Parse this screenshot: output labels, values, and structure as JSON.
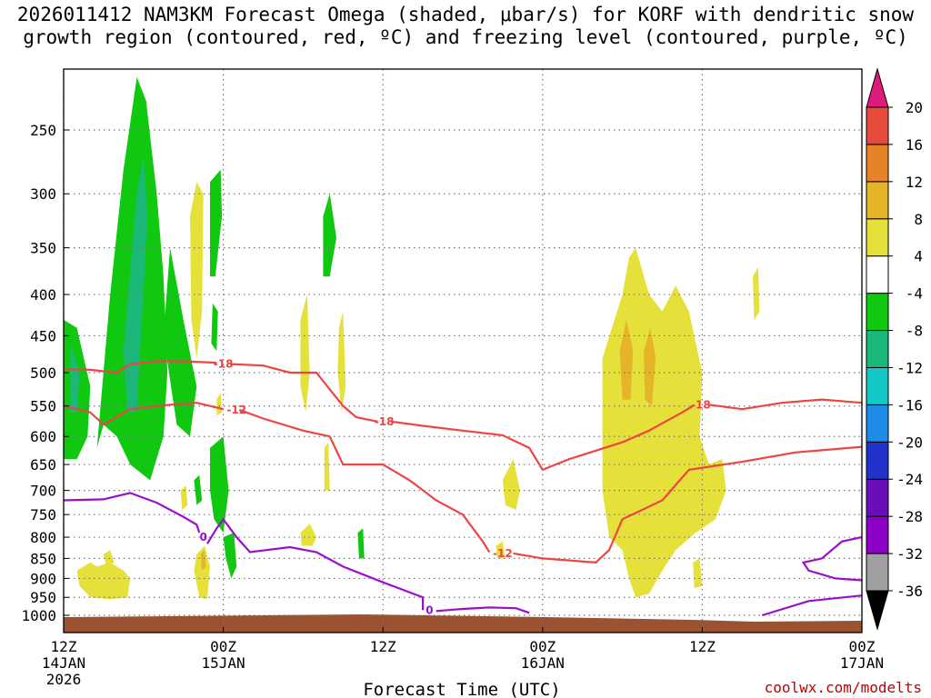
{
  "title": {
    "line1": "2026011412 NAM3KM Forecast Omega (shaded, μbar/s) for KORF with dendritic snow",
    "line2": "growth region (contoured, red, ºC) and freezing level (contoured, purple, ºC)"
  },
  "watermark": "coolwx.com/modelts",
  "chart_data": {
    "type": "time-height",
    "xlabel": "Forecast Time (UTC)",
    "ylabel": "",
    "y_scale": "log-pressure",
    "ylim": [
      1050,
      200
    ],
    "y_ticks": [
      250,
      300,
      350,
      400,
      450,
      500,
      550,
      600,
      650,
      700,
      750,
      800,
      850,
      900,
      950,
      1000
    ],
    "x_range_hours": [
      0,
      60
    ],
    "x_ticks": [
      {
        "hour": 0,
        "lines": [
          "12Z",
          "14JAN",
          "2026"
        ]
      },
      {
        "hour": 12,
        "lines": [
          "00Z",
          "15JAN"
        ]
      },
      {
        "hour": 24,
        "lines": [
          "12Z"
        ]
      },
      {
        "hour": 36,
        "lines": [
          "00Z",
          "16JAN"
        ]
      },
      {
        "hour": 48,
        "lines": [
          "12Z"
        ]
      },
      {
        "hour": 60,
        "lines": [
          "00Z",
          "17JAN"
        ]
      }
    ],
    "colorbar": {
      "levels": [
        -36,
        -32,
        -28,
        -24,
        -20,
        -16,
        -12,
        -8,
        -4,
        4,
        8,
        12,
        16,
        20
      ],
      "colors": [
        "#000000",
        "#a0a0a0",
        "#8c00c8",
        "#6a0fb8",
        "#2233cc",
        "#1e8ce6",
        "#14c8c8",
        "#1cb87a",
        "#10c810",
        "#ffffff",
        "#e6e03a",
        "#e6b428",
        "#e68228",
        "#e64a3c",
        "#e01a7a"
      ],
      "labels": [
        "20",
        "16",
        "12",
        "8",
        "4",
        "-4",
        "-8",
        "-12",
        "-16",
        "-20",
        "-24",
        "-28",
        "-32",
        "-36"
      ]
    },
    "contours": [
      {
        "name": "red",
        "color": "#ee4444",
        "label_values": [
          "-18",
          "-12",
          "-18",
          "-18",
          "-12"
        ]
      },
      {
        "name": "purple",
        "color": "#9a10c8",
        "label_values": [
          "0",
          "0"
        ]
      }
    ]
  },
  "colors": {
    "terrain": "#9b5230",
    "red_contour": "#ee4444",
    "purple_contour": "#9a10c8"
  }
}
